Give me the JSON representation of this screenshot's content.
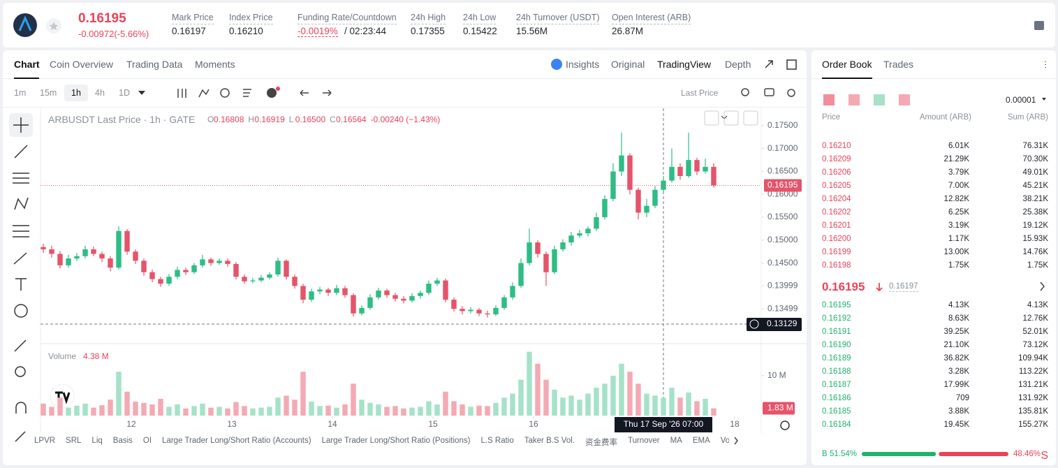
{
  "header": {
    "price": "0.16195",
    "change": "-0.00972(-5.66%)",
    "stats": [
      {
        "label": "Mark Price",
        "value": "0.16197"
      },
      {
        "label": "Index Price",
        "value": "0.16210"
      },
      {
        "label": "Funding Rate/Countdown",
        "value": "-0.0019%",
        "extra": "/ 02:23:44"
      },
      {
        "label": "24h High",
        "value": "0.17355"
      },
      {
        "label": "24h Low",
        "value": "0.15422"
      },
      {
        "label": "24h Turnover (USDT)",
        "value": "15.56M"
      },
      {
        "label": "Open Interest (ARB)",
        "value": "26.87M"
      }
    ]
  },
  "tabs": [
    "Chart",
    "Coin Overview",
    "Trading Data",
    "Moments"
  ],
  "view_tabs": [
    "Insights",
    "Original",
    "TradingView",
    "Depth"
  ],
  "intervals": [
    "1m",
    "15m",
    "1h",
    "4h",
    "1D"
  ],
  "price_type": "Last Price",
  "indicators": [
    "LPVR",
    "SRL",
    "Liq",
    "Basis",
    "OI",
    "Large Trader Long/Short Ratio (Accounts)",
    "Large Trader Long/Short Ratio (Positions)",
    "L.S Ratio",
    "Taker B.S Vol.",
    "资金费率",
    "Turnover",
    "MA",
    "EMA",
    "Volu"
  ],
  "chart": {
    "type": "candlestick",
    "title": "ARBUSDT Last Price · 1h · GATE",
    "ohlc": [
      {
        "key": "O",
        "value": "0.16808"
      },
      {
        "key": "H",
        "value": "0.16919"
      },
      {
        "key": "L",
        "value": "0.16500"
      },
      {
        "key": "C",
        "value": "0.16564"
      }
    ],
    "ohlc_change": "-0.00240 (−1.43%)",
    "volume_title": "Volume",
    "volume_hover": "4.38 M",
    "last_volume_label": "1.83 M",
    "crosshair_price": "0.13129",
    "crosshair_time": "Thu 17 Sep '26   07:00",
    "up_color": "#2ebd85",
    "down_color": "#e5546a",
    "volume_up_color": "#a5e2c8",
    "volume_down_color": "#f4a9b3",
    "x": [
      11.125,
      11.2083,
      11.2917,
      11.375,
      11.4583,
      11.5417,
      11.625,
      11.7083,
      11.7917,
      11.875,
      11.9583,
      12.0417,
      12.125,
      12.2083,
      12.2917,
      12.375,
      12.4583,
      12.5417,
      12.625,
      12.7083,
      12.7917,
      12.875,
      12.9583,
      13.0417,
      13.125,
      13.2083,
      13.2917,
      13.375,
      13.4583,
      13.5417,
      13.625,
      13.7083,
      13.7917,
      13.875,
      13.9583,
      14.0417,
      14.125,
      14.2083,
      14.2917,
      14.375,
      14.4583,
      14.5417,
      14.625,
      14.7083,
      14.7917,
      14.875,
      14.9583,
      15.0417,
      15.125,
      15.2083,
      15.2917,
      15.375,
      15.4583,
      15.5417,
      15.625,
      15.7083,
      15.7917,
      15.875,
      15.9583,
      16.0417,
      16.125,
      16.2083,
      16.2917,
      16.375,
      16.4583,
      16.5417,
      16.625,
      16.7083,
      16.7917,
      16.875,
      16.9583,
      17.0417,
      17.125,
      17.2083,
      17.2917,
      17.375,
      17.4583,
      17.5417,
      17.625,
      17.7083,
      17.7917
    ],
    "candles": [
      [
        0.1485,
        0.1492,
        0.1472,
        0.148
      ],
      [
        0.148,
        0.1488,
        0.1462,
        0.147
      ],
      [
        0.147,
        0.1476,
        0.1438,
        0.1445
      ],
      [
        0.1445,
        0.1468,
        0.144,
        0.146
      ],
      [
        0.146,
        0.1472,
        0.1455,
        0.1465
      ],
      [
        0.1465,
        0.1488,
        0.146,
        0.148
      ],
      [
        0.148,
        0.1486,
        0.1465,
        0.147
      ],
      [
        0.147,
        0.1475,
        0.1452,
        0.146
      ],
      [
        0.146,
        0.1465,
        0.1432,
        0.144
      ],
      [
        0.144,
        0.153,
        0.1436,
        0.152
      ],
      [
        0.152,
        0.1524,
        0.1468,
        0.1475
      ],
      [
        0.1475,
        0.148,
        0.1448,
        0.1455
      ],
      [
        0.1455,
        0.146,
        0.1422,
        0.143
      ],
      [
        0.143,
        0.1436,
        0.1408,
        0.1415
      ],
      [
        0.1415,
        0.142,
        0.1398,
        0.1405
      ],
      [
        0.1405,
        0.1426,
        0.14,
        0.142
      ],
      [
        0.142,
        0.1442,
        0.1415,
        0.1435
      ],
      [
        0.1435,
        0.144,
        0.1424,
        0.143
      ],
      [
        0.143,
        0.145,
        0.1426,
        0.1445
      ],
      [
        0.1445,
        0.1468,
        0.144,
        0.1458
      ],
      [
        0.1458,
        0.1462,
        0.1444,
        0.145
      ],
      [
        0.145,
        0.146,
        0.1446,
        0.1455
      ],
      [
        0.1455,
        0.146,
        0.1442,
        0.1448
      ],
      [
        0.1448,
        0.1452,
        0.1414,
        0.142
      ],
      [
        0.142,
        0.1425,
        0.1405,
        0.141
      ],
      [
        0.141,
        0.1418,
        0.1406,
        0.1412
      ],
      [
        0.1412,
        0.1424,
        0.1408,
        0.1418
      ],
      [
        0.1418,
        0.143,
        0.1414,
        0.1425
      ],
      [
        0.1425,
        0.1462,
        0.142,
        0.1455
      ],
      [
        0.1455,
        0.1458,
        0.1414,
        0.142
      ],
      [
        0.142,
        0.1425,
        0.1394,
        0.14
      ],
      [
        0.14,
        0.1405,
        0.1362,
        0.137
      ],
      [
        0.137,
        0.1394,
        0.1365,
        0.1388
      ],
      [
        0.1388,
        0.1398,
        0.1382,
        0.1392
      ],
      [
        0.1392,
        0.1396,
        0.1378,
        0.1385
      ],
      [
        0.1385,
        0.1402,
        0.138,
        0.1395
      ],
      [
        0.1395,
        0.14,
        0.1374,
        0.138
      ],
      [
        0.138,
        0.1384,
        0.1333,
        0.134
      ],
      [
        0.134,
        0.1358,
        0.1336,
        0.1352
      ],
      [
        0.1352,
        0.1382,
        0.1348,
        0.1375
      ],
      [
        0.1375,
        0.1396,
        0.137,
        0.139
      ],
      [
        0.139,
        0.1394,
        0.1374,
        0.138
      ],
      [
        0.138,
        0.1385,
        0.1366,
        0.1372
      ],
      [
        0.1372,
        0.1378,
        0.1362,
        0.1368
      ],
      [
        0.1368,
        0.1384,
        0.1364,
        0.1378
      ],
      [
        0.1378,
        0.139,
        0.1372,
        0.1385
      ],
      [
        0.1385,
        0.1412,
        0.138,
        0.1405
      ],
      [
        0.1405,
        0.1418,
        0.14,
        0.1412
      ],
      [
        0.1412,
        0.1416,
        0.1364,
        0.137
      ],
      [
        0.137,
        0.1375,
        0.1344,
        0.135
      ],
      [
        0.135,
        0.1356,
        0.1338,
        0.1345
      ],
      [
        0.1345,
        0.1354,
        0.134,
        0.1348
      ],
      [
        0.1348,
        0.1352,
        0.1334,
        0.134
      ],
      [
        0.134,
        0.1346,
        0.1331,
        0.1338
      ],
      [
        0.1338,
        0.1358,
        0.1334,
        0.1352
      ],
      [
        0.1352,
        0.138,
        0.1348,
        0.1375
      ],
      [
        0.1375,
        0.1408,
        0.137,
        0.14
      ],
      [
        0.14,
        0.146,
        0.1396,
        0.145
      ],
      [
        0.145,
        0.1525,
        0.1445,
        0.1495
      ],
      [
        0.1495,
        0.15,
        0.1462,
        0.147
      ],
      [
        0.147,
        0.1475,
        0.14,
        0.143
      ],
      [
        0.143,
        0.1488,
        0.1426,
        0.148
      ],
      [
        0.148,
        0.1502,
        0.1475,
        0.1495
      ],
      [
        0.1495,
        0.1518,
        0.1488,
        0.151
      ],
      [
        0.151,
        0.1522,
        0.1505,
        0.1515
      ],
      [
        0.1515,
        0.153,
        0.1508,
        0.1525
      ],
      [
        0.1525,
        0.156,
        0.152,
        0.155
      ],
      [
        0.155,
        0.1598,
        0.1545,
        0.159
      ],
      [
        0.159,
        0.1668,
        0.1585,
        0.165
      ],
      [
        0.165,
        0.1735,
        0.164,
        0.1685
      ],
      [
        0.1685,
        0.169,
        0.16,
        0.161
      ],
      [
        0.161,
        0.1615,
        0.1545,
        0.156
      ],
      [
        0.156,
        0.159,
        0.155,
        0.1575
      ],
      [
        0.1575,
        0.1618,
        0.157,
        0.161
      ],
      [
        0.161,
        0.164,
        0.1604,
        0.163
      ],
      [
        0.163,
        0.17,
        0.1625,
        0.166
      ],
      [
        0.166,
        0.1668,
        0.1632,
        0.164
      ],
      [
        0.164,
        0.1735,
        0.1636,
        0.1675
      ],
      [
        0.1675,
        0.168,
        0.1642,
        0.165
      ],
      [
        0.165,
        0.1678,
        0.1645,
        0.166
      ],
      [
        0.166,
        0.1668,
        0.1615,
        0.16195
      ]
    ],
    "volumes": [
      3.0,
      2.2,
      4.5,
      2.0,
      2.5,
      3.0,
      2.0,
      2.6,
      4.0,
      11.0,
      6.0,
      3.5,
      3.2,
      2.8,
      4.2,
      2.2,
      2.8,
      1.8,
      2.4,
      3.0,
      2.0,
      2.2,
      1.8,
      3.4,
      2.4,
      1.8,
      2.0,
      2.2,
      4.5,
      5.0,
      4.0,
      11.0,
      3.5,
      2.4,
      2.5,
      2.0,
      2.8,
      8.0,
      4.0,
      3.2,
      2.8,
      2.2,
      2.4,
      1.8,
      2.0,
      2.2,
      3.6,
      2.8,
      6.0,
      3.6,
      2.8,
      2.2,
      2.5,
      2.4,
      3.2,
      4.5,
      5.5,
      9.0,
      16.0,
      13.0,
      9.0,
      6.5,
      4.5,
      5.0,
      4.0,
      5.5,
      7.0,
      8.0,
      10.0,
      13.0,
      11.0,
      8.0,
      5.5,
      5.0,
      4.5,
      7.0,
      4.5,
      5.8,
      3.6,
      4.2,
      1.83
    ],
    "xlim": [
      10.979,
      18.264
    ],
    "xticks": [
      12,
      13,
      14,
      15,
      16,
      18
    ],
    "ylim": [
      0.1277,
      0.1788
    ],
    "yticks": [
      {
        "value": 0.175,
        "label": "0.17500"
      },
      {
        "value": 0.17,
        "label": "0.17000"
      },
      {
        "value": 0.165,
        "label": "0.16500"
      },
      {
        "value": 0.16,
        "label": "0.16000"
      },
      {
        "value": 0.155,
        "label": "0.15500"
      },
      {
        "value": 0.15,
        "label": "0.15000"
      },
      {
        "value": 0.145,
        "label": "0.14500"
      },
      0.13999,
      0.13499
    ],
    "volume_ylim": [
      0,
      17.5
    ],
    "volume_yticks": [
      {
        "value": 10,
        "label": "10 M"
      }
    ]
  },
  "order_book": {
    "tabs": [
      "Order Book",
      "Trades"
    ],
    "precision": "0.00001",
    "columns": [
      "Price",
      "Amount (ARB)",
      "Sum (ARB)"
    ],
    "asks": [
      [
        "0.16210",
        "6.01K",
        "76.31K"
      ],
      [
        "0.16209",
        "21.29K",
        "70.30K"
      ],
      [
        "0.16206",
        "3.79K",
        "49.01K"
      ],
      [
        "0.16205",
        "7.00K",
        "45.21K"
      ],
      [
        "0.16204",
        "12.82K",
        "38.21K"
      ],
      [
        "0.16202",
        "6.25K",
        "25.38K"
      ],
      [
        "0.16201",
        "3.19K",
        "19.12K"
      ],
      [
        "0.16200",
        "1.17K",
        "15.93K"
      ],
      [
        "0.16199",
        "13.00K",
        "14.76K"
      ],
      [
        "0.16198",
        "1.75K",
        "1.75K"
      ]
    ],
    "last": "0.16195",
    "mark": "0.16197",
    "bids": [
      [
        "0.16195",
        "4.13K",
        "4.13K"
      ],
      [
        "0.16192",
        "8.63K",
        "12.76K"
      ],
      [
        "0.16191",
        "39.25K",
        "52.01K"
      ],
      [
        "0.16190",
        "21.10K",
        "73.12K"
      ],
      [
        "0.16189",
        "36.82K",
        "109.94K"
      ],
      [
        "0.16188",
        "3.28K",
        "113.22K"
      ],
      [
        "0.16187",
        "17.99K",
        "131.21K"
      ],
      [
        "0.16186",
        "709",
        "131.92K"
      ],
      [
        "0.16185",
        "3.88K",
        "135.81K"
      ],
      [
        "0.16184",
        "19.45K",
        "155.27K"
      ]
    ],
    "ratio": {
      "labels": [
        "B",
        "S"
      ],
      "values": [
        51.54,
        48.46
      ],
      "value_labels": [
        "51.54%",
        "48.46%"
      ],
      "colors": [
        "#20b26c",
        "#e94359"
      ]
    }
  }
}
